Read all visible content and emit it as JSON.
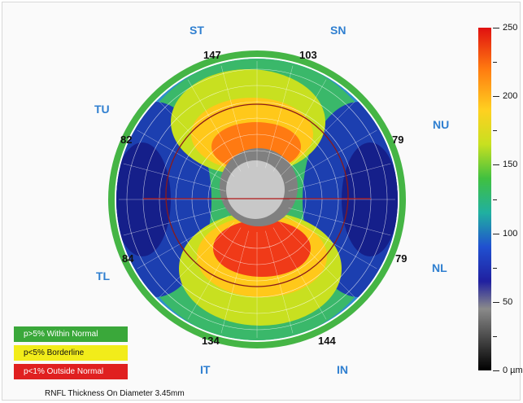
{
  "sectors": {
    "st": "ST",
    "sn": "SN",
    "tu": "TU",
    "nu": "NU",
    "tl": "TL",
    "nl": "NL",
    "it": "IT",
    "in": "IN"
  },
  "ring_values": {
    "st": "147",
    "sn": "103",
    "tu": "82",
    "nu": "79",
    "tl": "84",
    "nl": "79",
    "it": "134",
    "in": "144"
  },
  "legend": {
    "within_normal": "p>5% Within Normal",
    "borderline": "p<5% Borderline",
    "outside_normal": "p<1% Outside Normal",
    "colors": {
      "within_normal": "#3aa83a",
      "borderline": "#f2ec1a",
      "outside_normal": "#e02020"
    }
  },
  "colorbar": {
    "labels": [
      "250",
      "200",
      "150",
      "100",
      "50",
      "0 µm"
    ],
    "max": 250,
    "min": 0
  },
  "caption": "RNFL Thickness On Diameter 3.45mm",
  "ring_color": "#45b545"
}
